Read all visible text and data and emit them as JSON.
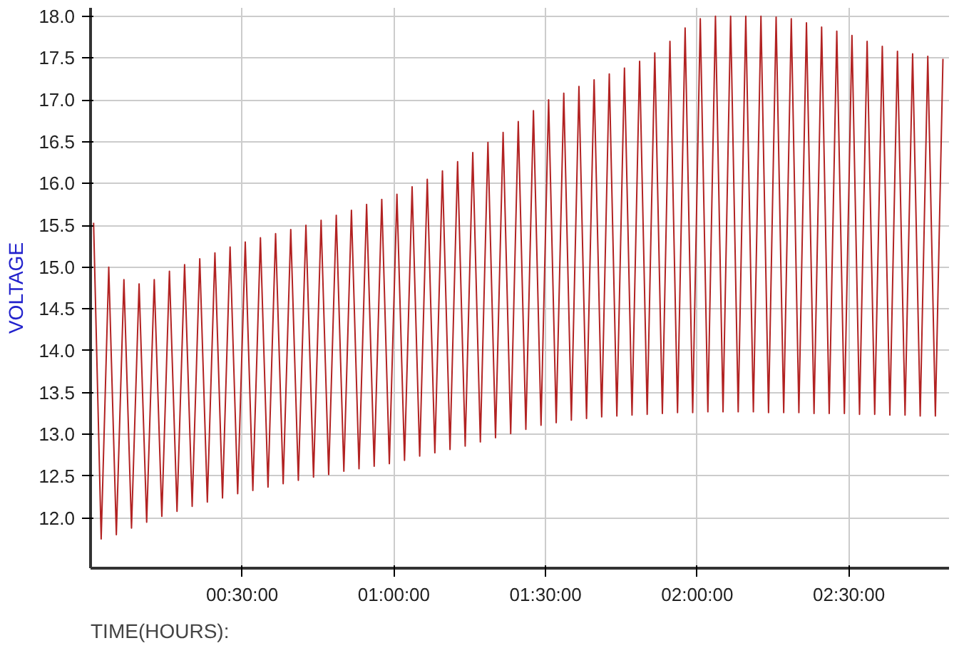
{
  "chart_data": {
    "type": "line",
    "xlabel": "TIME(HOURS):",
    "ylabel": "VOLTAGE",
    "xlim": [
      0,
      2.83
    ],
    "ylim": [
      11.4,
      18.1
    ],
    "xticks": [
      {
        "value": 0.5,
        "label": "00:30:00"
      },
      {
        "value": 1.0,
        "label": "01:00:00"
      },
      {
        "value": 1.5,
        "label": "01:30:00"
      },
      {
        "value": 2.0,
        "label": "02:00:00"
      },
      {
        "value": 2.5,
        "label": "02:30:00"
      }
    ],
    "yticks": [
      {
        "value": 12,
        "label": "12.0"
      },
      12.5,
      {
        "value": 13,
        "label": "13.0"
      },
      13.5,
      {
        "value": 14,
        "label": "14.0"
      },
      14.5,
      {
        "value": 15,
        "label": "15.0"
      },
      15.5,
      {
        "value": 16,
        "label": "16.0"
      },
      16.5,
      {
        "value": 17,
        "label": "17.0"
      },
      17.5,
      {
        "value": 18,
        "label": "18.0"
      }
    ],
    "grid": true,
    "marker": "none",
    "line_style": "solid",
    "x": [
      0.01,
      0.035,
      0.06,
      0.085,
      0.11,
      0.135,
      0.16,
      0.185,
      0.21,
      0.235,
      0.26,
      0.285,
      0.31,
      0.335,
      0.36,
      0.385,
      0.41,
      0.435,
      0.46,
      0.485,
      0.51,
      0.535,
      0.56,
      0.585,
      0.61,
      0.635,
      0.66,
      0.685,
      0.71,
      0.735,
      0.76,
      0.785,
      0.81,
      0.835,
      0.86,
      0.885,
      0.91,
      0.935,
      0.96,
      0.985,
      1.01,
      1.035,
      1.06,
      1.085,
      1.11,
      1.135,
      1.16,
      1.185,
      1.21,
      1.235,
      1.26,
      1.285,
      1.31,
      1.335,
      1.36,
      1.385,
      1.41,
      1.435,
      1.46,
      1.485,
      1.51,
      1.535,
      1.56,
      1.585,
      1.61,
      1.635,
      1.66,
      1.685,
      1.71,
      1.735,
      1.76,
      1.785,
      1.81,
      1.835,
      1.86,
      1.885,
      1.91,
      1.935,
      1.96,
      1.985,
      2.01,
      2.035,
      2.06,
      2.085,
      2.11,
      2.135,
      2.16,
      2.185,
      2.21,
      2.235,
      2.26,
      2.285,
      2.31,
      2.335,
      2.36,
      2.385,
      2.41,
      2.435,
      2.46,
      2.485,
      2.51,
      2.535,
      2.56,
      2.585,
      2.61,
      2.635,
      2.66,
      2.685,
      2.71,
      2.735,
      2.76,
      2.785,
      2.81
    ],
    "series": [
      {
        "color": "#b22222",
        "values": [
          15.53,
          11.75,
          15.0,
          11.8,
          14.85,
          11.88,
          14.8,
          11.95,
          14.85,
          12.02,
          14.95,
          12.08,
          15.03,
          12.14,
          15.1,
          12.19,
          15.17,
          12.24,
          15.24,
          12.29,
          15.3,
          12.33,
          15.35,
          12.37,
          15.4,
          12.41,
          15.45,
          12.45,
          15.5,
          12.49,
          15.56,
          12.52,
          15.62,
          12.56,
          15.68,
          12.59,
          15.75,
          12.62,
          15.81,
          12.65,
          15.87,
          12.69,
          15.96,
          12.74,
          16.05,
          12.78,
          16.15,
          12.82,
          16.26,
          12.86,
          16.37,
          12.91,
          16.49,
          12.96,
          16.61,
          13.01,
          16.74,
          13.06,
          16.87,
          13.11,
          17.0,
          13.14,
          17.08,
          13.17,
          17.16,
          13.19,
          17.24,
          13.21,
          17.31,
          13.22,
          17.38,
          13.23,
          17.46,
          13.24,
          17.56,
          13.25,
          17.7,
          13.26,
          17.86,
          13.26,
          17.97,
          13.27,
          18.0,
          13.27,
          18.0,
          13.27,
          18.0,
          13.27,
          18.0,
          13.26,
          17.99,
          13.26,
          17.97,
          13.26,
          17.92,
          13.25,
          17.87,
          13.25,
          17.82,
          13.25,
          17.77,
          13.24,
          17.7,
          13.24,
          17.64,
          13.23,
          17.58,
          13.23,
          17.55,
          13.22,
          17.52,
          13.22,
          17.49
        ]
      }
    ]
  }
}
